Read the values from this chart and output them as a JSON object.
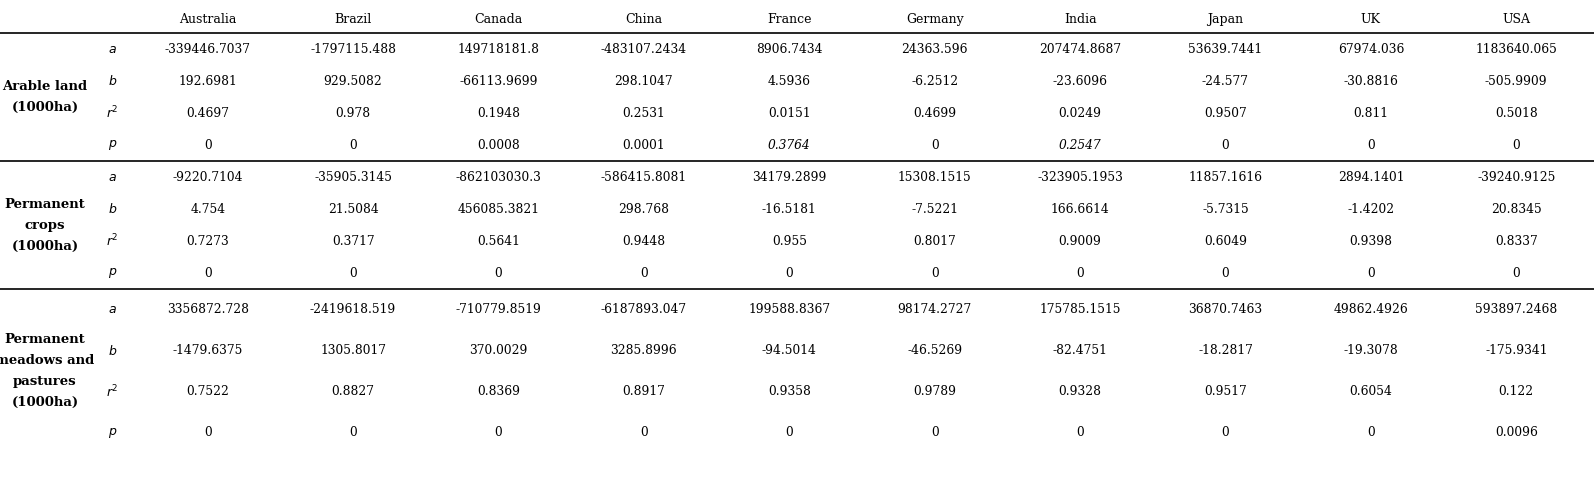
{
  "columns": [
    "Australia",
    "Brazil",
    "Canada",
    "China",
    "France",
    "Germany",
    "India",
    "Japan",
    "UK",
    "USA"
  ],
  "row_groups": [
    {
      "label_lines": [
        "Arable land",
        "(1000ha)"
      ],
      "rows": [
        {
          "param": "a",
          "values": [
            "-339446.7037",
            "-1797115.488",
            "149718181.8",
            "-483107.2434",
            "8906.7434",
            "24363.596",
            "207474.8687",
            "53639.7441",
            "67974.036",
            "1183640.065"
          ],
          "italic_vals": [
            false,
            false,
            false,
            false,
            false,
            false,
            false,
            false,
            false,
            false
          ]
        },
        {
          "param": "b",
          "values": [
            "192.6981",
            "929.5082",
            "-66113.9699",
            "298.1047",
            "4.5936",
            "-6.2512",
            "-23.6096",
            "-24.577",
            "-30.8816",
            "-505.9909"
          ],
          "italic_vals": [
            false,
            false,
            false,
            false,
            false,
            false,
            false,
            false,
            false,
            false
          ]
        },
        {
          "param": "r2",
          "values": [
            "0.4697",
            "0.978",
            "0.1948",
            "0.2531",
            "0.0151",
            "0.4699",
            "0.0249",
            "0.9507",
            "0.811",
            "0.5018"
          ],
          "italic_vals": [
            false,
            false,
            false,
            false,
            false,
            false,
            false,
            false,
            false,
            false
          ]
        },
        {
          "param": "p",
          "values": [
            "0",
            "0",
            "0.0008",
            "0.0001",
            "0.3764",
            "0",
            "0.2547",
            "0",
            "0",
            "0"
          ],
          "italic_vals": [
            false,
            false,
            false,
            false,
            true,
            false,
            true,
            false,
            false,
            false
          ]
        }
      ]
    },
    {
      "label_lines": [
        "Permanent",
        "crops",
        "(1000ha)"
      ],
      "rows": [
        {
          "param": "a",
          "values": [
            "-9220.7104",
            "-35905.3145",
            "-862103030.3",
            "-586415.8081",
            "34179.2899",
            "15308.1515",
            "-323905.1953",
            "11857.1616",
            "2894.1401",
            "-39240.9125"
          ],
          "italic_vals": [
            false,
            false,
            false,
            false,
            false,
            false,
            false,
            false,
            false,
            false
          ]
        },
        {
          "param": "b",
          "values": [
            "4.754",
            "21.5084",
            "456085.3821",
            "298.768",
            "-16.5181",
            "-7.5221",
            "166.6614",
            "-5.7315",
            "-1.4202",
            "20.8345"
          ],
          "italic_vals": [
            false,
            false,
            false,
            false,
            false,
            false,
            false,
            false,
            false,
            false
          ]
        },
        {
          "param": "r2",
          "values": [
            "0.7273",
            "0.3717",
            "0.5641",
            "0.9448",
            "0.955",
            "0.8017",
            "0.9009",
            "0.6049",
            "0.9398",
            "0.8337"
          ],
          "italic_vals": [
            false,
            false,
            false,
            false,
            false,
            false,
            false,
            false,
            false,
            false
          ]
        },
        {
          "param": "p",
          "values": [
            "0",
            "0",
            "0",
            "0",
            "0",
            "0",
            "0",
            "0",
            "0",
            "0"
          ],
          "italic_vals": [
            false,
            false,
            false,
            false,
            false,
            false,
            false,
            false,
            false,
            false
          ]
        }
      ]
    },
    {
      "label_lines": [
        "Permanent",
        "meadows and",
        "pastures",
        "(1000ha)"
      ],
      "rows": [
        {
          "param": "a",
          "values": [
            "3356872.728",
            "-2419618.519",
            "-710779.8519",
            "-6187893.047",
            "199588.8367",
            "98174.2727",
            "175785.1515",
            "36870.7463",
            "49862.4926",
            "593897.2468"
          ],
          "italic_vals": [
            false,
            false,
            false,
            false,
            false,
            false,
            false,
            false,
            false,
            false
          ]
        },
        {
          "param": "b",
          "values": [
            "-1479.6375",
            "1305.8017",
            "370.0029",
            "3285.8996",
            "-94.5014",
            "-46.5269",
            "-82.4751",
            "-18.2817",
            "-19.3078",
            "-175.9341"
          ],
          "italic_vals": [
            false,
            false,
            false,
            false,
            false,
            false,
            false,
            false,
            false,
            false
          ]
        },
        {
          "param": "r2",
          "values": [
            "0.7522",
            "0.8827",
            "0.8369",
            "0.8917",
            "0.9358",
            "0.9789",
            "0.9328",
            "0.9517",
            "0.6054",
            "0.122"
          ],
          "italic_vals": [
            false,
            false,
            false,
            false,
            false,
            false,
            false,
            false,
            false,
            false
          ]
        },
        {
          "param": "p",
          "values": [
            "0",
            "0",
            "0",
            "0",
            "0",
            "0",
            "0",
            "0",
            "0",
            "0.0096"
          ],
          "italic_vals": [
            false,
            false,
            false,
            false,
            false,
            false,
            false,
            false,
            false,
            false
          ]
        }
      ]
    }
  ],
  "bg_color": "white",
  "text_color": "black"
}
